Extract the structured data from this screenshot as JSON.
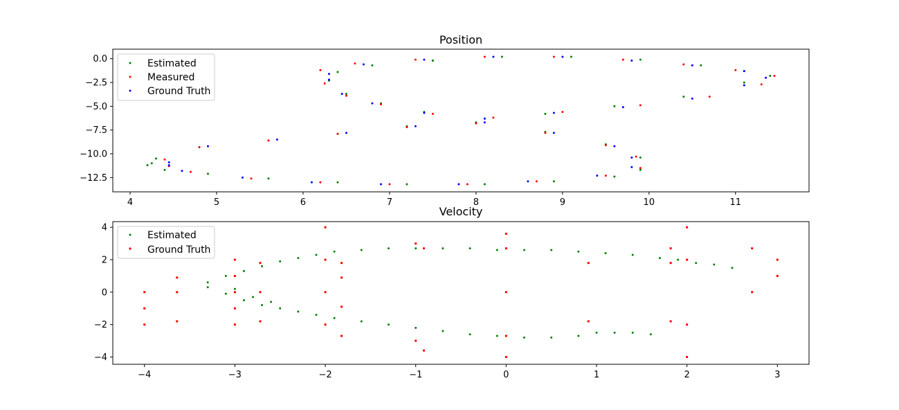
{
  "figure": {
    "background": "#ffffff"
  },
  "chart_data": [
    {
      "type": "scatter",
      "title": "Position",
      "xlim": [
        3.8,
        11.85
      ],
      "ylim": [
        -14.0,
        1.0
      ],
      "xticks": [
        4,
        5,
        6,
        7,
        8,
        9,
        10,
        11
      ],
      "yticks": [
        0.0,
        -2.5,
        -5.0,
        -7.5,
        -10.0,
        -12.5
      ],
      "ytick_labels": [
        "0.0",
        "−2.5",
        "−5.0",
        "−7.5",
        "−10.0",
        "−12.5"
      ],
      "xlabel": "",
      "ylabel": "",
      "grid": false,
      "legend": {
        "placement": "top-left",
        "entries": [
          "Estimated",
          "Measured",
          "Ground Truth"
        ]
      },
      "series": [
        {
          "name": "Estimated",
          "color": "#008000",
          "x": [
            7.5,
            8.3,
            9.1,
            9.9,
            10.6,
            11.1,
            11.4,
            11.1,
            10.4,
            9.6,
            8.8,
            8.1,
            7.4,
            6.9,
            6.5,
            6.3,
            6.4,
            6.8,
            7.5,
            4.2,
            4.3,
            4.8,
            5.6,
            6.4,
            7.2,
            8.0,
            8.8,
            9.5,
            9.9,
            9.9,
            9.6,
            8.9,
            8.1,
            7.2,
            6.4,
            5.6,
            4.9,
            4.4,
            4.25
          ],
          "y": [
            -0.2,
            0.2,
            0.2,
            -0.1,
            -0.7,
            -1.3,
            -1.8,
            -2.5,
            -4.0,
            -5.0,
            -5.8,
            -6.3,
            -5.6,
            -4.7,
            -3.7,
            -2.3,
            -1.4,
            -0.7,
            -0.2,
            -11.2,
            -10.5,
            -9.3,
            -8.6,
            -7.9,
            -7.1,
            -6.7,
            -7.7,
            -9.0,
            -10.4,
            -11.7,
            -12.4,
            -12.9,
            -13.2,
            -13.2,
            -13.0,
            -12.6,
            -12.1,
            -11.7,
            -11.0
          ]
        },
        {
          "name": "Measured",
          "color": "#ff0000",
          "x": [
            6.2,
            6.6,
            7.3,
            8.1,
            8.9,
            9.7,
            10.4,
            11.0,
            11.45,
            11.3,
            10.7,
            9.9,
            9.0,
            8.2,
            7.5,
            6.9,
            6.5,
            6.25,
            4.4,
            4.8,
            5.6,
            6.4,
            7.2,
            8.0,
            8.8,
            9.5,
            9.85,
            9.9,
            9.5,
            8.7,
            7.9,
            7.0,
            6.2,
            5.4,
            4.7,
            4.45
          ],
          "y": [
            -1.2,
            -0.5,
            -0.1,
            0.2,
            0.2,
            -0.1,
            -0.6,
            -1.2,
            -1.8,
            -2.7,
            -4.0,
            -4.9,
            -5.6,
            -6.2,
            -5.8,
            -4.8,
            -3.9,
            -2.6,
            -10.6,
            -9.3,
            -8.6,
            -7.9,
            -7.2,
            -6.8,
            -7.8,
            -9.1,
            -10.3,
            -11.5,
            -12.3,
            -12.9,
            -13.2,
            -13.2,
            -13.0,
            -12.6,
            -11.9,
            -11.3
          ]
        },
        {
          "name": "Ground Truth",
          "color": "#0000ff",
          "x": [
            6.3,
            6.7,
            7.4,
            8.2,
            9.0,
            9.8,
            10.5,
            11.1,
            11.35,
            11.1,
            10.5,
            9.7,
            8.9,
            8.1,
            7.4,
            6.8,
            6.45,
            6.3,
            4.45,
            4.9,
            5.7,
            6.5,
            7.3,
            8.1,
            8.9,
            9.6,
            9.8,
            9.8,
            9.4,
            8.6,
            7.8,
            6.9,
            6.1,
            5.3,
            4.6,
            4.45
          ],
          "y": [
            -1.6,
            -0.6,
            -0.1,
            0.2,
            0.2,
            -0.2,
            -0.7,
            -1.3,
            -2.0,
            -2.8,
            -4.2,
            -5.1,
            -5.7,
            -6.3,
            -5.7,
            -4.7,
            -3.7,
            -2.2,
            -10.9,
            -9.2,
            -8.5,
            -7.8,
            -7.1,
            -6.7,
            -7.8,
            -9.2,
            -10.4,
            -11.4,
            -12.3,
            -12.9,
            -13.2,
            -13.2,
            -13.0,
            -12.5,
            -11.8,
            -11.2
          ]
        }
      ]
    },
    {
      "type": "scatter",
      "title": "Velocity",
      "xlim": [
        -4.35,
        3.35
      ],
      "ylim": [
        -4.45,
        4.35
      ],
      "xticks": [
        -4,
        -3,
        -2,
        -1,
        0,
        1,
        2,
        3
      ],
      "xtick_labels": [
        "−4",
        "−3",
        "−2",
        "−1",
        "0",
        "1",
        "2",
        "3"
      ],
      "yticks": [
        4,
        2,
        0,
        -2,
        -4
      ],
      "ytick_labels": [
        "4",
        "2",
        "0",
        "−2",
        "−4"
      ],
      "xlabel": "",
      "ylabel": "",
      "grid": false,
      "legend": {
        "placement": "top-left",
        "entries": [
          "Estimated",
          "Ground Truth"
        ]
      },
      "series": [
        {
          "name": "Estimated",
          "color": "#008000",
          "x": [
            -3.3,
            -3.1,
            -2.9,
            -2.7,
            -2.5,
            -2.3,
            -2.1,
            -1.9,
            -1.6,
            -1.3,
            -1.0,
            -0.7,
            -0.4,
            -0.1,
            0.2,
            0.5,
            0.8,
            1.1,
            1.4,
            1.7,
            1.9,
            2.1,
            2.3,
            2.5,
            -3.3,
            -3.1,
            -2.9,
            -2.7,
            -2.5,
            -2.3,
            -2.1,
            -1.9,
            -1.6,
            -1.3,
            -1.0,
            -0.7,
            -0.4,
            -0.1,
            0.2,
            0.5,
            0.8,
            1.0,
            1.2,
            1.4,
            1.6,
            -3.0,
            -2.8,
            -2.6
          ],
          "y": [
            0.6,
            1.0,
            1.3,
            1.6,
            1.9,
            2.1,
            2.3,
            2.5,
            2.6,
            2.7,
            2.7,
            2.7,
            2.7,
            2.6,
            2.6,
            2.6,
            2.5,
            2.4,
            2.3,
            2.1,
            2.0,
            1.8,
            1.7,
            1.5,
            0.3,
            -0.1,
            -0.5,
            -0.8,
            -1.0,
            -1.2,
            -1.4,
            -1.6,
            -1.8,
            -2.0,
            -2.2,
            -2.4,
            -2.6,
            -2.7,
            -2.8,
            -2.8,
            -2.7,
            -2.5,
            -2.5,
            -2.5,
            -2.6,
            0.2,
            -0.3,
            -0.6
          ]
        },
        {
          "name": "Ground Truth",
          "color": "#ff0000",
          "x": [
            -4,
            -4,
            -4,
            -3.64,
            -3.64,
            -3.64,
            -3,
            -3,
            -3,
            -3,
            -3,
            -2.72,
            -2.72,
            -2.72,
            -2,
            -2,
            -2,
            -2,
            -1.82,
            -1.82,
            -1.82,
            -1.82,
            -1,
            -1,
            -0.91,
            -0.91,
            0,
            0,
            0,
            0,
            0,
            0.91,
            0.91,
            1.82,
            1.82,
            1.82,
            2,
            2,
            2,
            2,
            2.72,
            2.72,
            3,
            3
          ],
          "y": [
            0,
            -1,
            -2,
            0.9,
            0,
            -1.8,
            2,
            1,
            0,
            -1,
            -2,
            1.8,
            0,
            -1.8,
            4,
            2,
            0,
            -2,
            1.8,
            0.9,
            -0.9,
            -2.7,
            3,
            -3,
            2.7,
            -3.6,
            3.6,
            2.7,
            0,
            -2.7,
            -4,
            1.8,
            -1.8,
            2.7,
            1.8,
            -1.8,
            4,
            2,
            -2,
            -4,
            2.7,
            0,
            2,
            1
          ]
        }
      ]
    }
  ]
}
